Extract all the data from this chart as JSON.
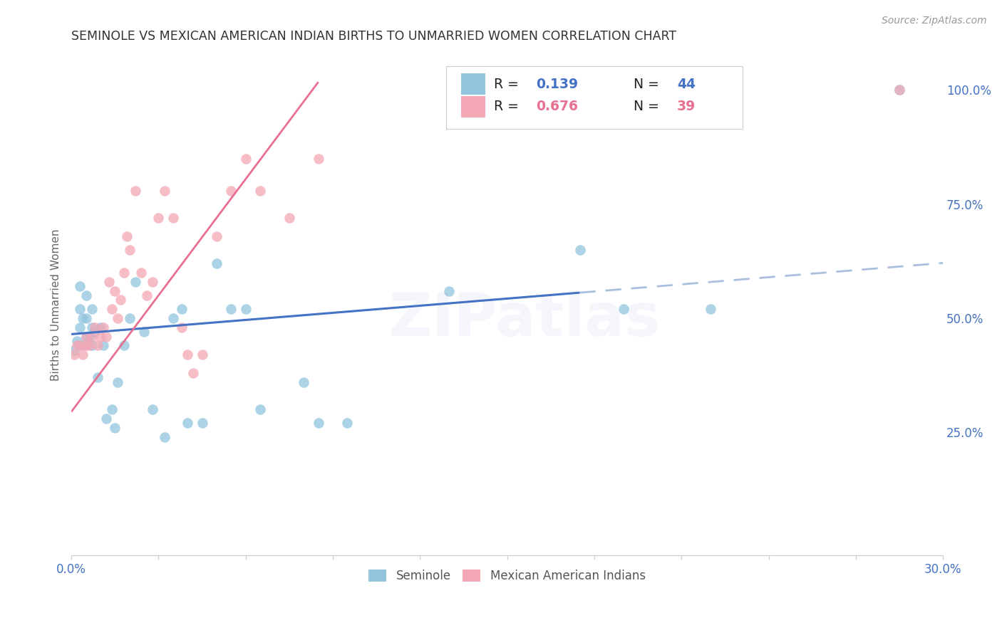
{
  "title": "SEMINOLE VS MEXICAN AMERICAN INDIAN BIRTHS TO UNMARRIED WOMEN CORRELATION CHART",
  "source": "Source: ZipAtlas.com",
  "ylabel": "Births to Unmarried Women",
  "legend_seminole": "Seminole",
  "legend_mexican": "Mexican American Indians",
  "r_seminole": 0.139,
  "n_seminole": 44,
  "r_mexican": 0.676,
  "n_mexican": 39,
  "color_seminole": "#92C5DE",
  "color_mexican": "#F4A7B5",
  "color_blue_text": "#4472C4",
  "color_pink_line": "#E87090",
  "color_blue_line": "#4472C4",
  "color_dashed": "#AABFDD",
  "xlim": [
    0.0,
    0.3
  ],
  "ylim": [
    -0.02,
    1.08
  ],
  "yticks": [
    0.25,
    0.5,
    0.75,
    1.0
  ],
  "ytick_labels": [
    "25.0%",
    "50.0%",
    "75.0%",
    "100.0%"
  ],
  "xtick_labels_show": [
    "0.0%",
    "30.0%"
  ],
  "seminole_x": [
    0.001,
    0.002,
    0.003,
    0.003,
    0.003,
    0.004,
    0.004,
    0.005,
    0.005,
    0.005,
    0.006,
    0.007,
    0.007,
    0.007,
    0.008,
    0.009,
    0.01,
    0.011,
    0.012,
    0.014,
    0.015,
    0.016,
    0.018,
    0.02,
    0.022,
    0.025,
    0.028,
    0.032,
    0.035,
    0.038,
    0.04,
    0.045,
    0.05,
    0.055,
    0.06,
    0.065,
    0.08,
    0.085,
    0.095,
    0.13,
    0.175,
    0.19,
    0.22,
    0.285
  ],
  "seminole_y": [
    0.43,
    0.45,
    0.48,
    0.52,
    0.57,
    0.44,
    0.5,
    0.46,
    0.5,
    0.55,
    0.46,
    0.44,
    0.48,
    0.52,
    0.47,
    0.37,
    0.48,
    0.44,
    0.28,
    0.3,
    0.26,
    0.36,
    0.44,
    0.5,
    0.58,
    0.47,
    0.3,
    0.24,
    0.5,
    0.52,
    0.27,
    0.27,
    0.62,
    0.52,
    0.52,
    0.3,
    0.36,
    0.27,
    0.27,
    0.56,
    0.65,
    0.52,
    0.52,
    1.0
  ],
  "mexican_x": [
    0.001,
    0.002,
    0.003,
    0.004,
    0.005,
    0.005,
    0.006,
    0.007,
    0.008,
    0.009,
    0.01,
    0.011,
    0.012,
    0.013,
    0.014,
    0.015,
    0.016,
    0.017,
    0.018,
    0.019,
    0.02,
    0.022,
    0.024,
    0.026,
    0.028,
    0.03,
    0.032,
    0.035,
    0.038,
    0.04,
    0.042,
    0.045,
    0.05,
    0.055,
    0.06,
    0.065,
    0.075,
    0.085,
    0.285
  ],
  "mexican_y": [
    0.42,
    0.44,
    0.44,
    0.42,
    0.44,
    0.46,
    0.44,
    0.46,
    0.48,
    0.44,
    0.46,
    0.48,
    0.46,
    0.58,
    0.52,
    0.56,
    0.5,
    0.54,
    0.6,
    0.68,
    0.65,
    0.78,
    0.6,
    0.55,
    0.58,
    0.72,
    0.78,
    0.72,
    0.48,
    0.42,
    0.38,
    0.42,
    0.68,
    0.78,
    0.85,
    0.78,
    0.72,
    0.85,
    1.0
  ],
  "watermark": "ZIPatlas",
  "background_color": "#ffffff",
  "grid_color": "#dddddd",
  "seminole_line_intercept": 0.465,
  "seminole_line_slope": 0.52,
  "mexican_line_intercept": 0.295,
  "mexican_line_slope": 8.5
}
